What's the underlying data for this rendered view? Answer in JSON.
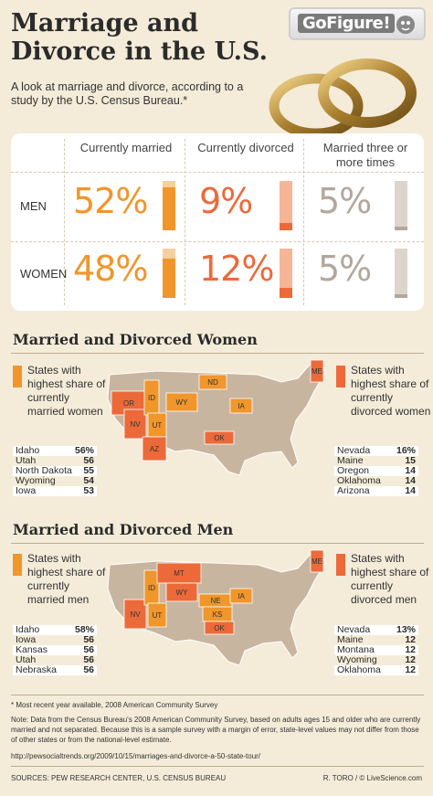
{
  "header": {
    "title_line1": "Marriage and",
    "title_line2": "Divorce in the U.S.",
    "subtitle": "A look at marriage and divorce, according to a study by the U.S. Census Bureau.*",
    "logo_text": "GoFigure!"
  },
  "colors": {
    "married": "#f0962a",
    "divorced": "#ec6a3a",
    "three_times": "#b3a79c",
    "married_light": "#f6cfa0",
    "divorced_light": "#f5b596",
    "three_light": "#ddd5cc",
    "map_base": "#c8b5a0"
  },
  "stats": {
    "columns": [
      "Currently married",
      "Currently divorced",
      "Married three or more times"
    ],
    "rows": [
      {
        "label": "MEN",
        "values": [
          "52%",
          "9%",
          "5%"
        ],
        "fractions": [
          0.52,
          0.09,
          0.05
        ]
      },
      {
        "label": "WOMEN",
        "values": [
          "48%",
          "12%",
          "5%"
        ],
        "fractions": [
          0.48,
          0.12,
          0.05
        ]
      }
    ]
  },
  "women": {
    "title": "Married and Divorced Women",
    "married_legend": "States with highest share of currently married women",
    "divorced_legend": "States with highest share of currently divorced women",
    "married_table": [
      [
        "Idaho",
        "56%"
      ],
      [
        "Utah",
        "56"
      ],
      [
        "North Dakota",
        "55"
      ],
      [
        "Wyoming",
        "54"
      ],
      [
        "Iowa",
        "53"
      ]
    ],
    "divorced_table": [
      [
        "Nevada",
        "16%"
      ],
      [
        "Maine",
        "15"
      ],
      [
        "Oregon",
        "14"
      ],
      [
        "Oklahoma",
        "14"
      ],
      [
        "Arizona",
        "14"
      ]
    ],
    "married_states": [
      "ID",
      "UT",
      "ND",
      "WY",
      "IA"
    ],
    "divorced_states": [
      "OR",
      "NV",
      "AZ",
      "OK",
      "ME"
    ]
  },
  "men": {
    "title": "Married and Divorced Men",
    "married_legend": "States with highest share of currently married men",
    "divorced_legend": "States with highest share of currently divorced men",
    "married_table": [
      [
        "Idaho",
        "58%"
      ],
      [
        "Iowa",
        "56"
      ],
      [
        "Kansas",
        "56"
      ],
      [
        "Utah",
        "56"
      ],
      [
        "Nebraska",
        "56"
      ]
    ],
    "divorced_table": [
      [
        "Nevada",
        "13%"
      ],
      [
        "Maine",
        "12"
      ],
      [
        "Montana",
        "12"
      ],
      [
        "Wyoming",
        "12"
      ],
      [
        "Oklahoma",
        "12"
      ]
    ],
    "married_states": [
      "ID",
      "UT",
      "IA",
      "KS",
      "NE"
    ],
    "divorced_states": [
      "NV",
      "MT",
      "WY",
      "OK",
      "ME"
    ]
  },
  "chart_data": {
    "type": "table",
    "columns": [
      "Currently married",
      "Currently divorced",
      "Married three or more times"
    ],
    "rows": [
      "MEN",
      "WOMEN"
    ],
    "values": [
      [
        52,
        9,
        5
      ],
      [
        48,
        12,
        5
      ]
    ],
    "women_married": {
      "Idaho": 56,
      "Utah": 56,
      "North Dakota": 55,
      "Wyoming": 54,
      "Iowa": 53
    },
    "women_divorced": {
      "Nevada": 16,
      "Maine": 15,
      "Oregon": 14,
      "Oklahoma": 14,
      "Arizona": 14
    },
    "men_married": {
      "Idaho": 58,
      "Iowa": 56,
      "Kansas": 56,
      "Utah": 56,
      "Nebraska": 56
    },
    "men_divorced": {
      "Nevada": 13,
      "Maine": 12,
      "Montana": 12,
      "Wyoming": 12,
      "Oklahoma": 12
    }
  },
  "footer": {
    "note_star": "* Most recent year available, 2008 American Community Survey",
    "note": "Note: Data from the Census Bureau's 2008 American Community Survey, based on adults ages 15 and older who are currently married and not separated. Because this is a sample survey with a margin of error, state-level values may not differ from those of other states or from the national-level estimate.",
    "url": "http://pewsocialtrends.org/2009/10/15/marriages-and-divorce-a-50-state-tour/",
    "sources": "SOURCES: PEW RESEARCH CENTER, U.S. CENSUS BUREAU",
    "credit": "R. TORO / © LiveScience.com"
  }
}
